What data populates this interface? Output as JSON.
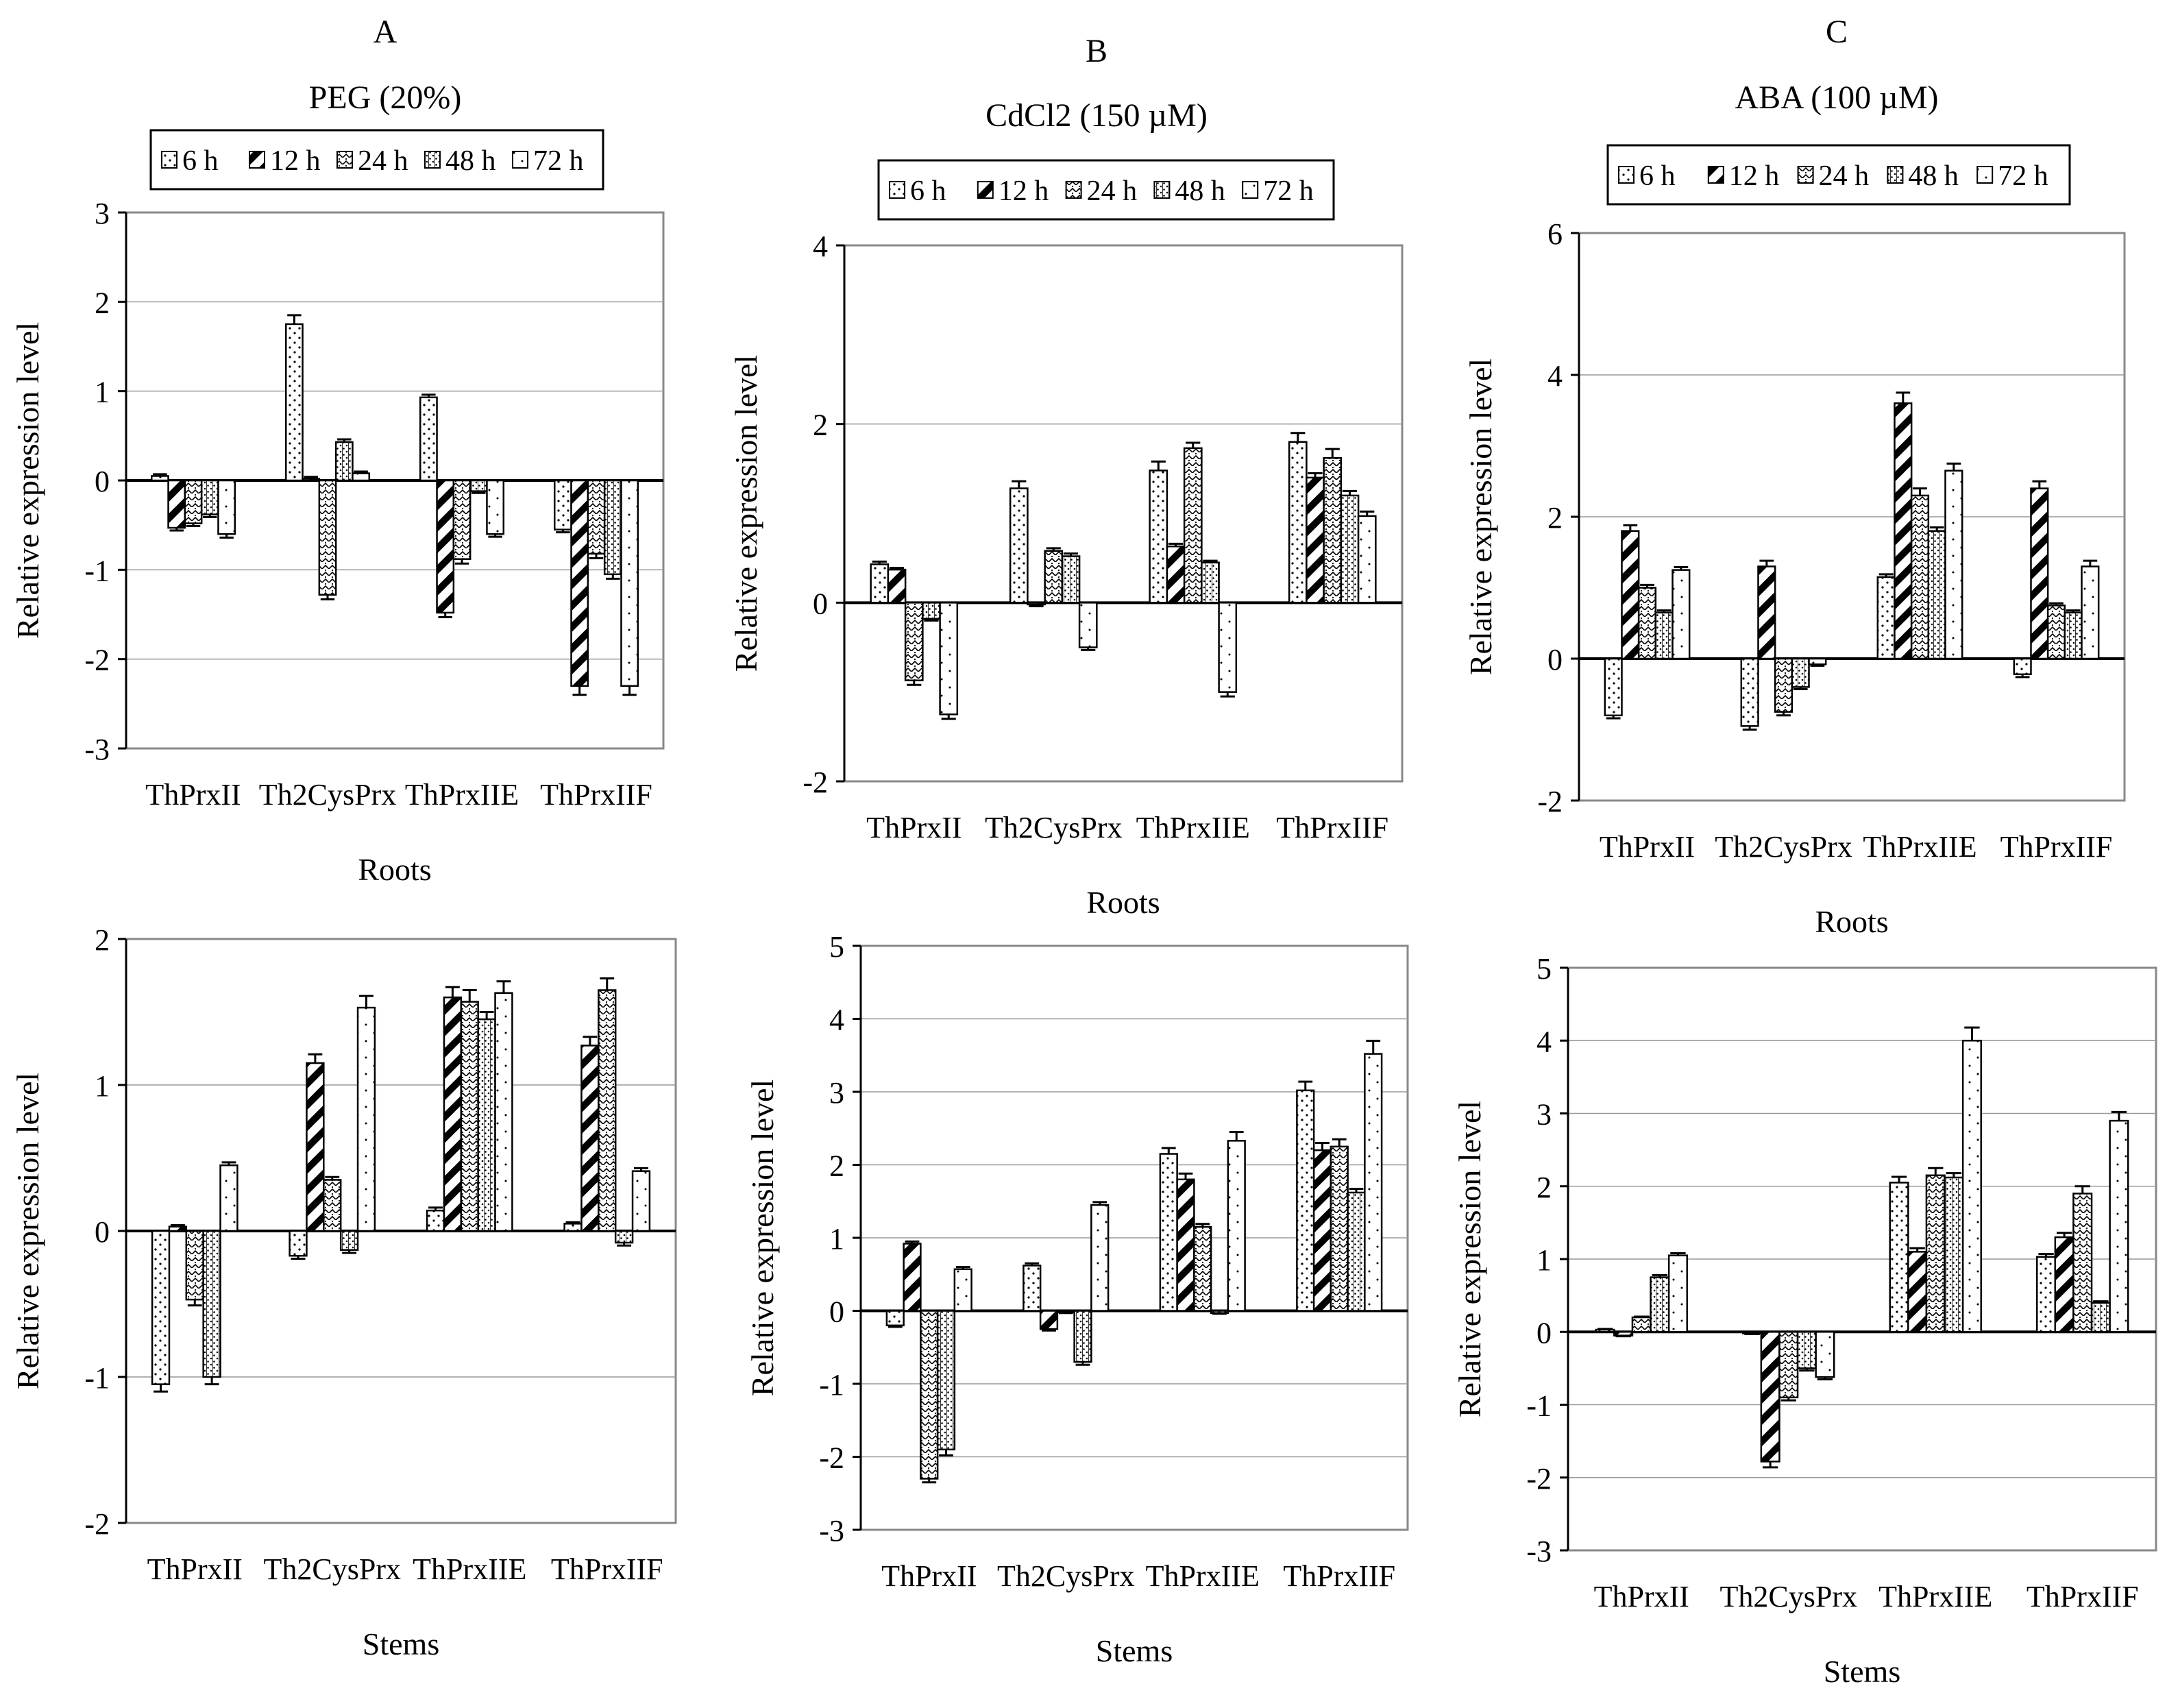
{
  "figure": {
    "column_letters": [
      "A",
      "B",
      "C"
    ],
    "treatments": [
      "PEG (20%)",
      "CdCl2 (150 µM)",
      "ABA (100 µM)"
    ],
    "legend_labels": [
      "6 h",
      "12 h",
      "24 h",
      "48 h",
      "72 h"
    ],
    "categories": [
      "ThPrxII",
      "Th2CysPrx",
      "ThPrxIIE",
      "ThPrxIIF"
    ]
  },
  "chart_data": [
    {
      "type": "bar",
      "panel": "A",
      "tissue_label": "Roots",
      "ylabel": "Relative expression level",
      "ylim": [
        -3,
        3
      ],
      "yticks": [
        3,
        2,
        1,
        0,
        -1,
        -2,
        -3
      ],
      "categories": [
        "ThPrxII",
        "Th2CysPrx",
        "ThPrxIIE",
        "ThPrxIIF"
      ],
      "series": [
        {
          "name": "6 h",
          "values": [
            0.05,
            1.75,
            0.93,
            -0.55
          ],
          "errors": [
            0.02,
            0.1,
            0.03,
            0.03
          ]
        },
        {
          "name": "12 h",
          "values": [
            -0.53,
            0.02,
            -1.48,
            -2.3
          ],
          "errors": [
            0.03,
            0.02,
            0.05,
            0.1
          ]
        },
        {
          "name": "24 h",
          "values": [
            -0.48,
            -1.28,
            -0.88,
            -0.82
          ],
          "errors": [
            0.03,
            0.05,
            0.05,
            0.05
          ]
        },
        {
          "name": "48 h",
          "values": [
            -0.38,
            0.43,
            -0.12,
            -1.05
          ],
          "errors": [
            0.03,
            0.03,
            0.02,
            0.05
          ]
        },
        {
          "name": "72 h",
          "values": [
            -0.6,
            0.08,
            -0.6,
            -2.3
          ],
          "errors": [
            0.04,
            0.02,
            0.03,
            0.1
          ]
        }
      ]
    },
    {
      "type": "bar",
      "panel": "B",
      "tissue_label": "Roots",
      "ylabel": "Relative expression level",
      "ylim": [
        -2,
        4
      ],
      "yticks": [
        4,
        2,
        0,
        -2
      ],
      "categories": [
        "ThPrxII",
        "Th2CysPrx",
        "ThPrxIIE",
        "ThPrxIIF"
      ],
      "series": [
        {
          "name": "6 h",
          "values": [
            0.43,
            1.28,
            1.48,
            1.8
          ],
          "errors": [
            0.03,
            0.08,
            0.1,
            0.1
          ]
        },
        {
          "name": "12 h",
          "values": [
            0.37,
            -0.02,
            0.63,
            1.4
          ],
          "errors": [
            0.02,
            0.02,
            0.03,
            0.05
          ]
        },
        {
          "name": "24 h",
          "values": [
            -0.87,
            0.58,
            1.73,
            1.62
          ],
          "errors": [
            0.05,
            0.03,
            0.06,
            0.1
          ]
        },
        {
          "name": "48 h",
          "values": [
            -0.18,
            0.52,
            0.45,
            1.2
          ],
          "errors": [
            0.02,
            0.03,
            0.02,
            0.05
          ]
        },
        {
          "name": "72 h",
          "values": [
            -1.25,
            -0.5,
            -1.0,
            0.97
          ],
          "errors": [
            0.05,
            0.03,
            0.05,
            0.05
          ]
        }
      ]
    },
    {
      "type": "bar",
      "panel": "C",
      "tissue_label": "Roots",
      "ylabel": "Relative expression level",
      "ylim": [
        -2,
        6
      ],
      "yticks": [
        6,
        4,
        2,
        0,
        -2
      ],
      "categories": [
        "ThPrxII",
        "Th2CysPrx",
        "ThPrxIIE",
        "ThPrxIIF"
      ],
      "series": [
        {
          "name": "6 h",
          "values": [
            -0.8,
            -0.95,
            1.15,
            -0.22
          ],
          "errors": [
            0.04,
            0.05,
            0.04,
            0.04
          ]
        },
        {
          "name": "12 h",
          "values": [
            1.8,
            1.3,
            3.6,
            2.4
          ],
          "errors": [
            0.08,
            0.08,
            0.15,
            0.1
          ]
        },
        {
          "name": "24 h",
          "values": [
            1.0,
            -0.75,
            2.3,
            0.75
          ],
          "errors": [
            0.04,
            0.05,
            0.1,
            0.03
          ]
        },
        {
          "name": "48 h",
          "values": [
            0.65,
            -0.4,
            1.8,
            0.65
          ],
          "errors": [
            0.03,
            0.03,
            0.05,
            0.03
          ]
        },
        {
          "name": "72 h",
          "values": [
            1.25,
            -0.08,
            2.65,
            1.3
          ],
          "errors": [
            0.04,
            0.02,
            0.1,
            0.08
          ]
        }
      ]
    },
    {
      "type": "bar",
      "panel": "A",
      "tissue_label": "Stems",
      "ylabel": "Relative expression level",
      "ylim": [
        -2,
        2
      ],
      "yticks": [
        2,
        1,
        0,
        -1,
        -2
      ],
      "categories": [
        "ThPrxII",
        "Th2CysPrx",
        "ThPrxIIE",
        "ThPrxIIF"
      ],
      "series": [
        {
          "name": "6 h",
          "values": [
            -1.05,
            -0.17,
            0.14,
            0.05
          ],
          "errors": [
            0.05,
            0.02,
            0.02,
            0.01
          ]
        },
        {
          "name": "12 h",
          "values": [
            0.03,
            1.15,
            1.6,
            1.27
          ],
          "errors": [
            0.01,
            0.06,
            0.07,
            0.06
          ]
        },
        {
          "name": "24 h",
          "values": [
            -0.47,
            0.35,
            1.57,
            1.65
          ],
          "errors": [
            0.04,
            0.02,
            0.08,
            0.08
          ]
        },
        {
          "name": "48 h",
          "values": [
            -1.0,
            -0.13,
            1.45,
            -0.08
          ],
          "errors": [
            0.05,
            0.02,
            0.05,
            0.02
          ]
        },
        {
          "name": "72 h",
          "values": [
            0.45,
            1.53,
            1.63,
            0.41
          ],
          "errors": [
            0.02,
            0.08,
            0.08,
            0.02
          ]
        }
      ]
    },
    {
      "type": "bar",
      "panel": "B",
      "tissue_label": "Stems",
      "ylabel": "Relative expression level",
      "ylim": [
        -3,
        5
      ],
      "yticks": [
        5,
        4,
        3,
        2,
        1,
        0,
        -1,
        -2,
        -3
      ],
      "categories": [
        "ThPrxII",
        "Th2CysPrx",
        "ThPrxIIE",
        "ThPrxIIF"
      ],
      "series": [
        {
          "name": "6 h",
          "values": [
            -0.2,
            0.62,
            2.15,
            3.02
          ],
          "errors": [
            0.02,
            0.03,
            0.08,
            0.12
          ]
        },
        {
          "name": "12 h",
          "values": [
            0.92,
            -0.25,
            1.8,
            2.2
          ],
          "errors": [
            0.03,
            0.02,
            0.08,
            0.1
          ]
        },
        {
          "name": "24 h",
          "values": [
            -2.3,
            -0.02,
            1.15,
            2.25
          ],
          "errors": [
            0.05,
            0.01,
            0.04,
            0.1
          ]
        },
        {
          "name": "48 h",
          "values": [
            -1.9,
            -0.7,
            -0.03,
            1.62
          ],
          "errors": [
            0.08,
            0.04,
            0.01,
            0.05
          ]
        },
        {
          "name": "72 h",
          "values": [
            0.57,
            1.45,
            2.33,
            3.52
          ],
          "errors": [
            0.03,
            0.04,
            0.12,
            0.18
          ]
        }
      ]
    },
    {
      "type": "bar",
      "panel": "C",
      "tissue_label": "Stems",
      "ylabel": "Relative expression level",
      "ylim": [
        -3,
        5
      ],
      "yticks": [
        5,
        4,
        3,
        2,
        1,
        0,
        -1,
        -2,
        -3
      ],
      "categories": [
        "ThPrxII",
        "Th2CysPrx",
        "ThPrxIIE",
        "ThPrxIIF"
      ],
      "series": [
        {
          "name": "6 h",
          "values": [
            0.03,
            -0.02,
            2.05,
            1.03
          ],
          "errors": [
            0.01,
            0.01,
            0.08,
            0.04
          ]
        },
        {
          "name": "12 h",
          "values": [
            -0.05,
            -1.78,
            1.1,
            1.3
          ],
          "errors": [
            0.01,
            0.08,
            0.05,
            0.06
          ]
        },
        {
          "name": "24 h",
          "values": [
            0.2,
            -0.9,
            2.15,
            1.9
          ],
          "errors": [
            0.01,
            0.04,
            0.1,
            0.1
          ]
        },
        {
          "name": "48 h",
          "values": [
            0.75,
            -0.5,
            2.12,
            0.4
          ],
          "errors": [
            0.03,
            0.03,
            0.06,
            0.02
          ]
        },
        {
          "name": "72 h",
          "values": [
            1.05,
            -0.62,
            4.0,
            2.9
          ],
          "errors": [
            0.03,
            0.03,
            0.18,
            0.12
          ]
        }
      ]
    }
  ]
}
